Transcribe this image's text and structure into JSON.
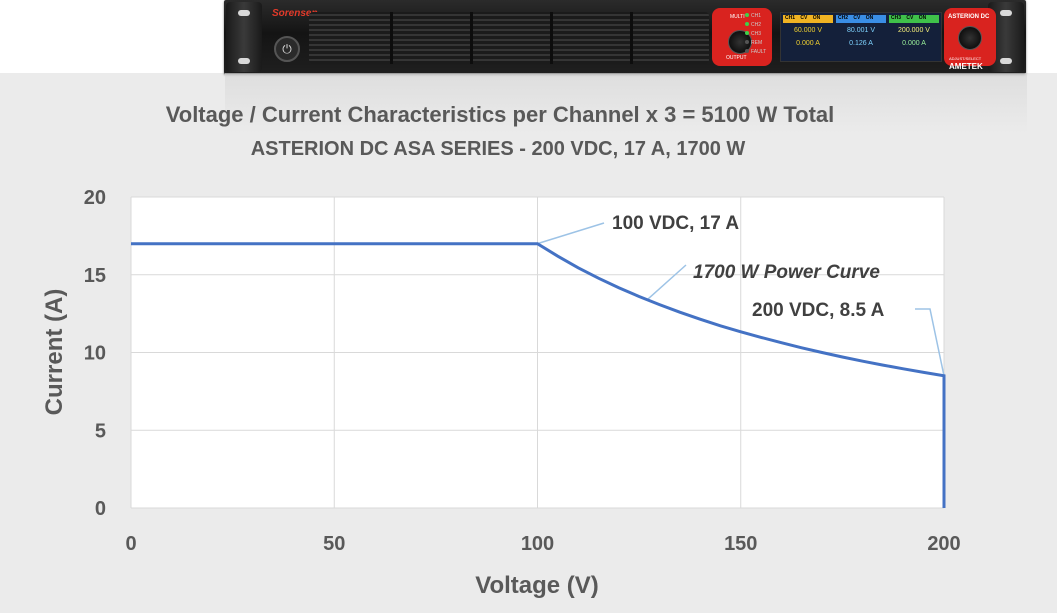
{
  "device": {
    "brand": "Sorensen",
    "model_label": "ASTERION DC",
    "knob_label": "ADJUST/SELECT",
    "maker": "AMETEK",
    "power_symbol": "⏻",
    "left_panel": {
      "top": "MULTI",
      "bottom": "OUTPUT"
    },
    "leds": [
      "CH1",
      "CH2",
      "CH3",
      "REM",
      "FAULT"
    ],
    "channels": [
      {
        "name": "CH1",
        "mode": "CV",
        "state": "ON",
        "voltage": "60.000 V",
        "current": "0.000 A",
        "color": "#f0b323"
      },
      {
        "name": "CH2",
        "mode": "CV",
        "state": "ON",
        "voltage": "80.001 V",
        "current": "0.126 A",
        "color": "#3a8ee6"
      },
      {
        "name": "CH3",
        "mode": "CV",
        "state": "ON",
        "voltage": "200.000 V",
        "current": "0.000 A",
        "color": "#3fc14a"
      }
    ]
  },
  "chart_data": {
    "type": "line",
    "title": "Voltage / Current Characteristics per Channel x 3 = 5100 W Total",
    "subtitle": "ASTERION DC ASA SERIES - 200 VDC, 17 A, 1700 W",
    "xlabel": "Voltage (V)",
    "ylabel": "Current (A)",
    "xlim": [
      0,
      200
    ],
    "ylim": [
      0,
      20
    ],
    "xticks": [
      0,
      50,
      100,
      150,
      200
    ],
    "yticks": [
      0,
      5,
      10,
      15,
      20
    ],
    "grid": true,
    "series": [
      {
        "color": "#4472c4",
        "x": [
          0,
          100,
          105,
          110,
          115,
          120,
          125,
          130,
          135,
          140,
          145,
          150,
          155,
          160,
          165,
          170,
          175,
          180,
          185,
          190,
          195,
          200,
          200
        ],
        "y": [
          17,
          17,
          16.19,
          15.45,
          14.78,
          14.17,
          13.6,
          13.08,
          12.59,
          12.14,
          11.72,
          11.33,
          10.97,
          10.63,
          10.3,
          10.0,
          9.71,
          9.44,
          9.19,
          8.95,
          8.72,
          8.5,
          0
        ]
      }
    ],
    "annotations": [
      {
        "text": "100 VDC, 17 A",
        "x": 100,
        "y": 17
      },
      {
        "text": "1700 W Power Curve",
        "x": 127,
        "y": 13.4,
        "italic": true
      },
      {
        "text": "200 VDC, 8.5 A",
        "x": 200,
        "y": 8.5
      }
    ],
    "line_color": "#4472c4",
    "leader_color": "#9dc3e6"
  }
}
